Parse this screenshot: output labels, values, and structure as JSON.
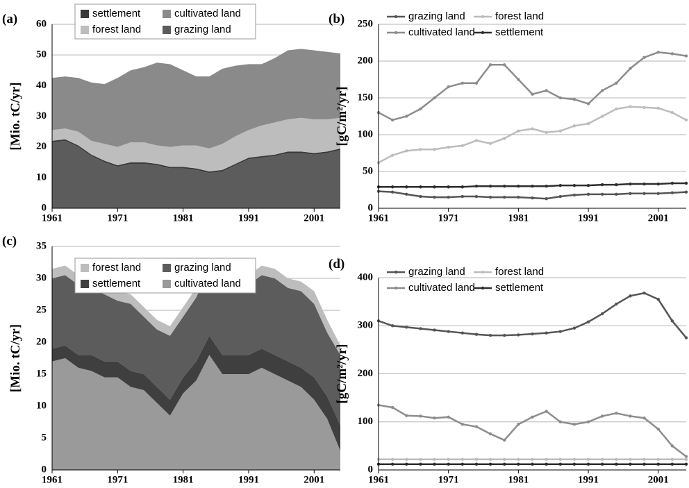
{
  "chart_data": [
    {
      "type": "area",
      "stacked": true,
      "panel_label": "(a)",
      "y_label": "[Mio. tC/yr]",
      "x": [
        1961,
        1963,
        1965,
        1967,
        1969,
        1971,
        1973,
        1975,
        1977,
        1979,
        1981,
        1983,
        1985,
        1987,
        1989,
        1991,
        1993,
        1995,
        1997,
        1999,
        2001,
        2003,
        2005
      ],
      "xlim": [
        1961,
        2005
      ],
      "xticks": [
        1961,
        1971,
        1981,
        1991,
        2001
      ],
      "ylim": [
        0,
        60
      ],
      "yticks": [
        0,
        10,
        20,
        30,
        40,
        50,
        60
      ],
      "grid": true,
      "legend": "upper left",
      "series": [
        {
          "name": "settlement",
          "color": "#3a3a3a",
          "values": [
            0.5,
            0.5,
            0.5,
            0.5,
            0.5,
            0.5,
            0.5,
            0.5,
            0.5,
            0.5,
            0.5,
            0.5,
            0.5,
            0.5,
            0.5,
            0.5,
            0.5,
            0.5,
            0.5,
            0.5,
            0.5,
            0.5,
            0.5
          ]
        },
        {
          "name": "cultivated land",
          "color": "#8a8a8a",
          "values": [
            17,
            17,
            17.5,
            19,
            19.5,
            22.5,
            23.5,
            24.5,
            27,
            27,
            24.5,
            22.5,
            23.5,
            24.5,
            23,
            21.5,
            20,
            21,
            22.5,
            22.5,
            22.5,
            22,
            21
          ]
        },
        {
          "name": "forest land",
          "color": "#bdbdbd",
          "values": [
            3.5,
            3.5,
            4.5,
            4.5,
            5.5,
            6,
            6.5,
            6.5,
            6,
            6.5,
            7,
            7.5,
            7.5,
            8.5,
            9,
            9,
            10,
            10.5,
            10.5,
            11,
            11,
            10.5,
            10
          ]
        },
        {
          "name": "grazing land",
          "color": "#5c5c5c",
          "values": [
            21.5,
            22,
            20,
            17,
            15,
            13.5,
            14.5,
            14.5,
            14,
            13,
            13,
            12.5,
            11.5,
            12,
            14,
            16,
            16.5,
            17,
            18,
            18,
            17.5,
            18,
            19
          ]
        }
      ]
    },
    {
      "type": "line",
      "panel_label": "(b)",
      "y_label": "[gC/m²/yr]",
      "x": [
        1961,
        1963,
        1965,
        1967,
        1969,
        1971,
        1973,
        1975,
        1977,
        1979,
        1981,
        1983,
        1985,
        1987,
        1989,
        1991,
        1993,
        1995,
        1997,
        1999,
        2001,
        2003,
        2005
      ],
      "xlim": [
        1961,
        2005
      ],
      "xticks": [
        1961,
        1971,
        1981,
        1991,
        2001
      ],
      "ylim": [
        0,
        250
      ],
      "yticks": [
        0,
        50,
        100,
        150,
        200,
        250
      ],
      "grid": true,
      "legend": "upper left",
      "series": [
        {
          "name": "grazing land",
          "color": "#555555",
          "values": [
            23,
            22,
            19,
            16,
            15,
            15,
            16,
            16,
            15,
            15,
            15,
            14,
            13,
            16,
            18,
            19,
            19,
            19,
            20,
            20,
            20,
            21,
            22
          ]
        },
        {
          "name": "forest land",
          "color": "#bcbcbc",
          "values": [
            62,
            72,
            78,
            80,
            80,
            83,
            85,
            92,
            88,
            95,
            105,
            108,
            103,
            105,
            112,
            115,
            125,
            135,
            138,
            137,
            136,
            130,
            120
          ]
        },
        {
          "name": "cultivated land",
          "color": "#8c8c8c",
          "values": [
            130,
            120,
            125,
            135,
            150,
            165,
            170,
            170,
            195,
            195,
            175,
            155,
            160,
            150,
            148,
            142,
            160,
            170,
            190,
            205,
            212,
            210,
            207
          ]
        },
        {
          "name": "settlement",
          "color": "#2e2e2e",
          "values": [
            29,
            29,
            29,
            29,
            29,
            29,
            29,
            30,
            30,
            30,
            30,
            30,
            30,
            31,
            31,
            31,
            32,
            32,
            33,
            33,
            33,
            34,
            34
          ]
        }
      ]
    },
    {
      "type": "area",
      "stacked": true,
      "panel_label": "(c)",
      "y_label": "[Mio. tC/yr]",
      "x": [
        1961,
        1963,
        1965,
        1967,
        1969,
        1971,
        1973,
        1975,
        1977,
        1979,
        1981,
        1983,
        1985,
        1987,
        1989,
        1991,
        1993,
        1995,
        1997,
        1999,
        2001,
        2003,
        2005
      ],
      "xlim": [
        1961,
        2005
      ],
      "xticks": [
        1961,
        1971,
        1981,
        1991,
        2001
      ],
      "ylim": [
        0,
        35
      ],
      "yticks": [
        0,
        5,
        10,
        15,
        20,
        25,
        30,
        35
      ],
      "grid": true,
      "legend": "upper left",
      "series": [
        {
          "name": "forest land",
          "color": "#bdbdbd",
          "values": [
            1.5,
            1.5,
            1.5,
            1.5,
            1.5,
            1.5,
            1.5,
            1.5,
            1.5,
            1.5,
            1.5,
            1.5,
            1.5,
            1.5,
            1.5,
            1.5,
            1.5,
            1.5,
            1.5,
            1.5,
            2,
            2,
            1.5
          ]
        },
        {
          "name": "grazing land",
          "color": "#5c5c5c",
          "values": [
            11,
            11,
            11,
            10.5,
            10.5,
            9.5,
            10.5,
            9,
            9,
            10,
            9.5,
            10,
            10.5,
            10.5,
            10.5,
            11,
            11.5,
            12,
            11.5,
            12,
            11.5,
            10,
            11
          ]
        },
        {
          "name": "settlement",
          "color": "#3f3f3f",
          "values": [
            2,
            2,
            2,
            2.5,
            2.5,
            2.5,
            2.5,
            2.5,
            2.5,
            2.5,
            2.5,
            3,
            3,
            3,
            3,
            3,
            3,
            3,
            3,
            3,
            3.5,
            3.5,
            4
          ]
        },
        {
          "name": "cultivated land",
          "color": "#9a9a9a",
          "values": [
            17,
            17.5,
            16,
            15.5,
            14.5,
            14.5,
            13,
            12.5,
            10.5,
            8.5,
            12,
            14,
            18,
            15,
            15,
            15,
            16,
            15,
            14,
            13,
            11,
            8,
            3
          ]
        }
      ]
    },
    {
      "type": "line",
      "panel_label": "(d)",
      "y_label": "[gC/m²/yr]",
      "x": [
        1961,
        1963,
        1965,
        1967,
        1969,
        1971,
        1973,
        1975,
        1977,
        1979,
        1981,
        1983,
        1985,
        1987,
        1989,
        1991,
        1993,
        1995,
        1997,
        1999,
        2001,
        2003,
        2005
      ],
      "xlim": [
        1961,
        2005
      ],
      "xticks": [
        1961,
        1971,
        1981,
        1991,
        2001
      ],
      "ylim": [
        0,
        400
      ],
      "yticks": [
        0,
        100,
        200,
        300,
        400
      ],
      "grid": true,
      "legend": "upper left",
      "series": [
        {
          "name": "grazing land",
          "color": "#555555",
          "values": [
            310,
            300,
            297,
            294,
            291,
            288,
            285,
            282,
            280,
            280,
            281,
            283,
            285,
            288,
            295,
            308,
            325,
            345,
            362,
            368,
            355,
            310,
            275
          ]
        },
        {
          "name": "forest land",
          "color": "#bcbcbc",
          "values": [
            22,
            22,
            22,
            22,
            22,
            22,
            22,
            22,
            22,
            22,
            22,
            22,
            22,
            22,
            22,
            22,
            22,
            22,
            22,
            22,
            22,
            22,
            22
          ]
        },
        {
          "name": "cultivated land",
          "color": "#8c8c8c",
          "values": [
            135,
            130,
            113,
            112,
            108,
            110,
            95,
            90,
            75,
            62,
            95,
            110,
            122,
            100,
            95,
            100,
            112,
            118,
            112,
            108,
            85,
            50,
            28
          ]
        },
        {
          "name": "settlement",
          "color": "#2e2e2e",
          "values": [
            12,
            12,
            12,
            12,
            12,
            12,
            12,
            12,
            12,
            12,
            12,
            12,
            12,
            12,
            12,
            12,
            12,
            12,
            12,
            12,
            12,
            12,
            12
          ]
        }
      ]
    }
  ]
}
